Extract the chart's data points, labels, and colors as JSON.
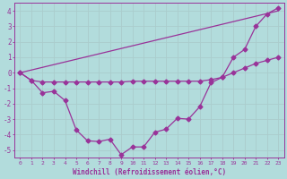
{
  "x_ticks": [
    0,
    1,
    2,
    3,
    4,
    5,
    6,
    7,
    8,
    9,
    10,
    11,
    12,
    13,
    14,
    15,
    16,
    17,
    18,
    19,
    20,
    21,
    22,
    23
  ],
  "line1": {
    "x": [
      0,
      23
    ],
    "y": [
      0,
      4
    ],
    "color": "#993399",
    "lw": 0.9
  },
  "line2": {
    "x": [
      0,
      1,
      2,
      3,
      4,
      5,
      6,
      7,
      8,
      9,
      10,
      11,
      12,
      13,
      14,
      15,
      16,
      17,
      18,
      19,
      20,
      21,
      22,
      23
    ],
    "y": [
      0,
      -0.5,
      -0.6,
      -0.6,
      -0.6,
      -0.6,
      -0.6,
      -0.6,
      -0.6,
      -0.6,
      -0.55,
      -0.55,
      -0.55,
      -0.55,
      -0.55,
      -0.55,
      -0.55,
      -0.45,
      -0.3,
      0.0,
      0.3,
      0.6,
      0.8,
      1.0
    ],
    "color": "#993399",
    "lw": 0.9
  },
  "line3": {
    "x": [
      0,
      1,
      2,
      3,
      4,
      5,
      6,
      7,
      8,
      9,
      10,
      11,
      12,
      13,
      14,
      15,
      16,
      17,
      18,
      19,
      20,
      21,
      22,
      23
    ],
    "y": [
      0,
      -0.5,
      -1.3,
      -1.2,
      -1.8,
      -3.7,
      -4.4,
      -4.45,
      -4.3,
      -5.3,
      -4.8,
      -4.8,
      -3.85,
      -3.65,
      -2.95,
      -3.0,
      -2.2,
      -0.65,
      -0.3,
      1.0,
      1.5,
      3.0,
      3.8,
      4.2
    ],
    "color": "#993399",
    "lw": 0.9,
    "marker": "D",
    "markersize": 2.5
  },
  "bgcolor": "#b2dcdc",
  "grid_color": "#d0eaea",
  "axis_color": "#993399",
  "xlabel": "Windchill (Refroidissement éolien,°C)",
  "ylim": [
    -5.5,
    4.5
  ],
  "xlim": [
    -0.5,
    23.5
  ],
  "yticks": [
    -5,
    -4,
    -3,
    -2,
    -1,
    0,
    1,
    2,
    3,
    4
  ],
  "ytick_labels": [
    "-5",
    "-4",
    "-3",
    "-2",
    "-1",
    "0",
    "1",
    "2",
    "3",
    "4"
  ]
}
